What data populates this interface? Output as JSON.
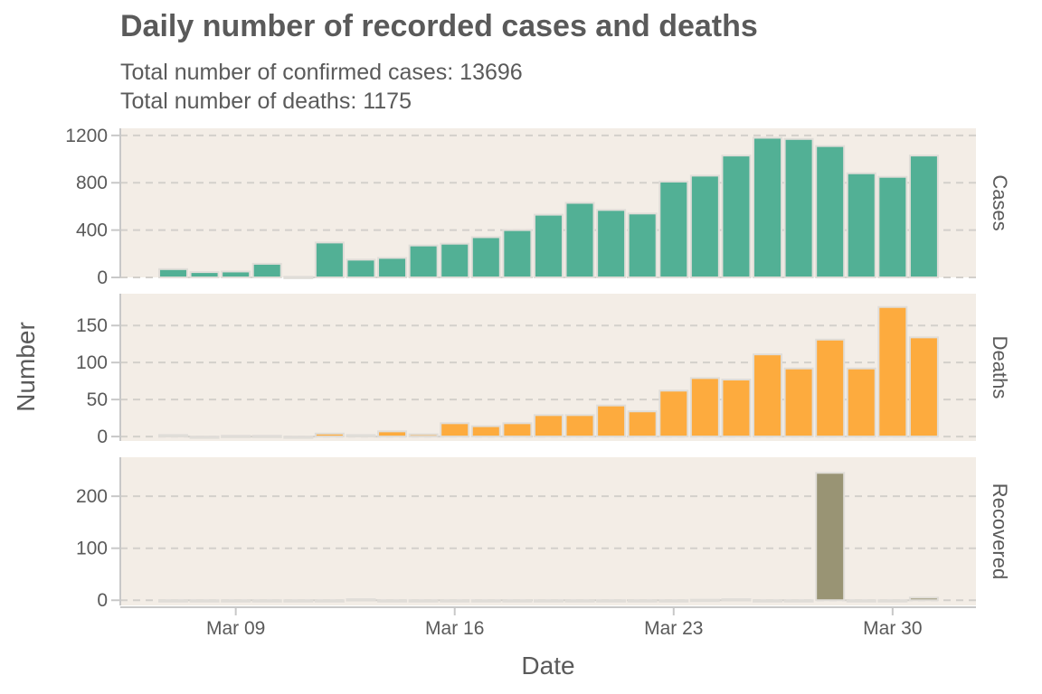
{
  "title": "Daily number of recorded cases and deaths",
  "subtitle_lines": [
    "Total number of confirmed cases: 13696",
    "Total number of deaths: 1175"
  ],
  "colors": {
    "panel_bg": "#f3ede6",
    "cases": "#52b095",
    "deaths": "#fdab3e",
    "recovered": "#999474",
    "bar_outline": "#e0ddd8",
    "text": "#5a5a5a",
    "grid": "#d3d0cb"
  },
  "chart_data": {
    "type": "bar",
    "xlabel": "Date",
    "ylabel": "Number",
    "x_tick_labels": [
      "Mar 09",
      "Mar 16",
      "Mar 23",
      "Mar 30"
    ],
    "x_tick_index": [
      2,
      9,
      16,
      23
    ],
    "categories": [
      "Mar 07",
      "Mar 08",
      "Mar 09",
      "Mar 10",
      "Mar 11",
      "Mar 12",
      "Mar 13",
      "Mar 14",
      "Mar 15",
      "Mar 16",
      "Mar 17",
      "Mar 18",
      "Mar 19",
      "Mar 20",
      "Mar 21",
      "Mar 22",
      "Mar 23",
      "Mar 24",
      "Mar 25",
      "Mar 26",
      "Mar 27",
      "Mar 28",
      "Mar 29",
      "Mar 30",
      "Mar 31",
      "Apr 01"
    ],
    "grid": "horizontal dashed",
    "facets": [
      {
        "strip": "Cases",
        "ylim": [
          0,
          1260
        ],
        "yticks": [
          0,
          400,
          800,
          1200
        ],
        "values": [
          70,
          45,
          50,
          115,
          5,
          295,
          150,
          165,
          270,
          285,
          340,
          400,
          530,
          630,
          570,
          540,
          810,
          860,
          1030,
          1180,
          1170,
          1110,
          880,
          850,
          1030,
          null
        ]
      },
      {
        "strip": "Deaths",
        "ylim": [
          -6,
          193
        ],
        "yticks": [
          0,
          50,
          100,
          150
        ],
        "values": [
          2,
          0,
          1,
          1,
          0,
          4,
          2,
          7,
          3,
          18,
          14,
          18,
          29,
          29,
          42,
          34,
          62,
          79,
          77,
          111,
          92,
          131,
          92,
          175,
          134,
          null
        ]
      },
      {
        "strip": "Recovered",
        "ylim": [
          -10,
          275
        ],
        "yticks": [
          0,
          100,
          200
        ],
        "values": [
          0,
          0,
          0,
          0,
          0,
          0,
          2,
          0,
          0,
          0,
          0,
          0,
          0,
          0,
          0,
          0,
          0,
          1,
          2,
          0,
          0,
          245,
          0,
          0,
          5,
          null
        ]
      }
    ]
  }
}
